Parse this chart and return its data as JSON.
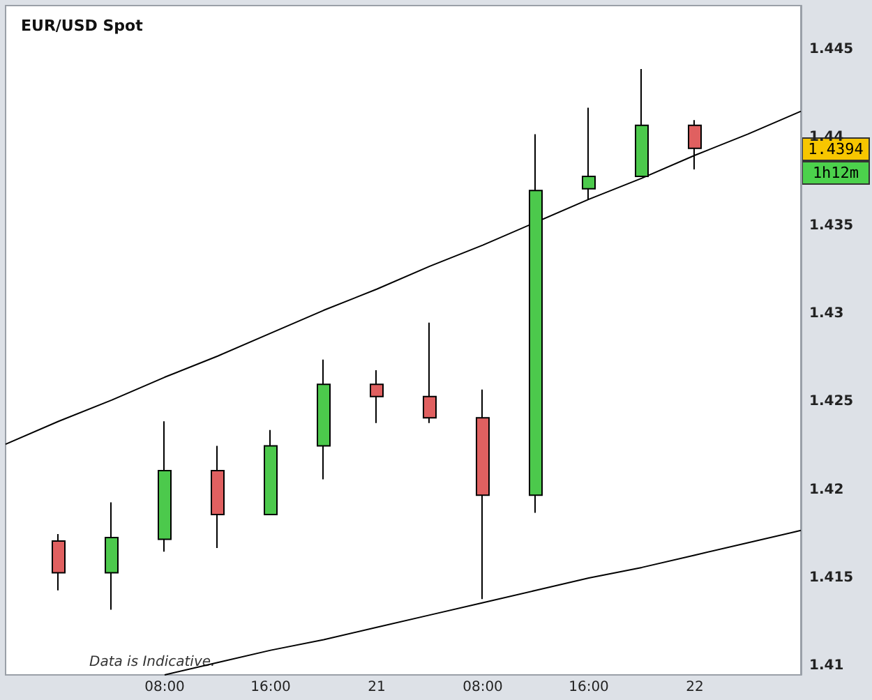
{
  "chart_data": {
    "type": "candlestick",
    "title": "EUR/USD Spot",
    "annotations": [
      "Data is Indicative.",
      "1.4394",
      "1h12m"
    ],
    "categories": [
      null,
      null,
      null,
      "08:00",
      null,
      "16:00",
      null,
      "21",
      null,
      "08:00",
      null,
      "16:00",
      null,
      "22",
      null,
      null
    ],
    "ohlc": [
      null,
      [
        1.4171,
        1.4175,
        1.4143,
        1.4153
      ],
      [
        1.4153,
        1.4193,
        1.4132,
        1.4173
      ],
      [
        1.4172,
        1.4239,
        1.4165,
        1.4211
      ],
      [
        1.4211,
        1.4225,
        1.4167,
        1.4186
      ],
      [
        1.4186,
        1.4234,
        1.4186,
        1.4225
      ],
      [
        1.4225,
        1.4274,
        1.4206,
        1.426
      ],
      [
        1.426,
        1.4268,
        1.4238,
        1.4253
      ],
      [
        1.4253,
        1.4295,
        1.4238,
        1.4241
      ],
      [
        1.4241,
        1.4257,
        1.4138,
        1.4197
      ],
      [
        1.4197,
        1.4402,
        1.4187,
        1.437
      ],
      [
        1.4371,
        1.4417,
        1.4365,
        1.4378
      ],
      [
        1.4378,
        1.4439,
        1.4378,
        1.4407
      ],
      [
        1.4407,
        1.441,
        1.4382,
        1.4394
      ],
      null,
      null
    ],
    "colors": [
      null,
      "#e06060",
      "#4cc94c",
      "#4cc94c",
      "#e06060",
      "#4cc94c",
      "#4cc94c",
      "#e06060",
      "#e06060",
      "#e06060",
      "#4cc94c",
      "#4cc94c",
      "#4cc94c",
      "#e06060",
      null,
      null
    ],
    "series": [
      {
        "type": "line",
        "values": [
          1.4226,
          1.4239,
          1.4251,
          1.4264,
          1.4276,
          1.4289,
          1.4302,
          1.4314,
          1.4327,
          1.4339,
          null,
          1.4365,
          1.4377,
          1.439,
          1.4402,
          1.4415
        ],
        "color": "#000000"
      },
      {
        "type": "line",
        "values": [
          null,
          null,
          null,
          1.4095,
          1.4102,
          1.4109,
          1.4115,
          1.4122,
          1.4129,
          1.4136,
          1.4143,
          1.415,
          1.4156,
          1.4163,
          1.417,
          1.4177
        ],
        "color": "#000000"
      }
    ],
    "ylim": [
      1.4095,
      1.4475
    ],
    "yticks": [
      1.41,
      1.415,
      1.42,
      1.425,
      1.43,
      1.435,
      1.44,
      1.445
    ],
    "marker": "none"
  }
}
